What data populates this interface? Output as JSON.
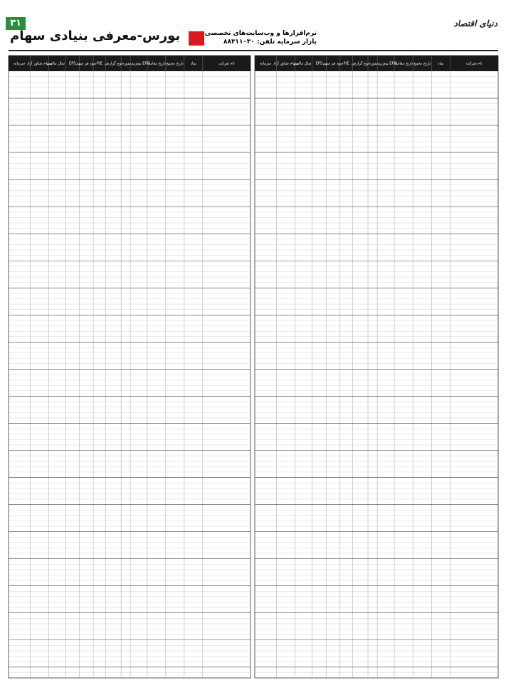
{
  "header": {
    "page_number": "۳۱",
    "title": "بورس-معرفی بنیادی سهام",
    "ad_line1": "نرم‌افزارها و وب‌سایت‌های تخصصی",
    "ad_line2": "بازار سرمایه  تلفن: ۸۸۳۱۱۰۳۰",
    "masthead": "دنیای اقتصاد"
  },
  "tables": [
    {
      "columns": [
        "نام شرکت",
        "نماد",
        "تاریخ مجمع",
        "تاریخ معامله",
        "پیش‌بینی EPS",
        "دوره",
        "نوع گزارش",
        "P/E",
        "سود هر سهم",
        "EPS",
        "سال مالی",
        "سهام شناور آزاد",
        "سرمایه"
      ]
    },
    {
      "columns": [
        "نام شرکت",
        "نماد",
        "تاریخ مجمع",
        "تاریخ معامله",
        "پیش‌بینی EPS",
        "دوره",
        "نوع گزارش",
        "P/E",
        "سود هر سهم",
        "EPS",
        "سال مالی",
        "سهام شناور آزاد",
        "سرمایه"
      ]
    }
  ]
}
